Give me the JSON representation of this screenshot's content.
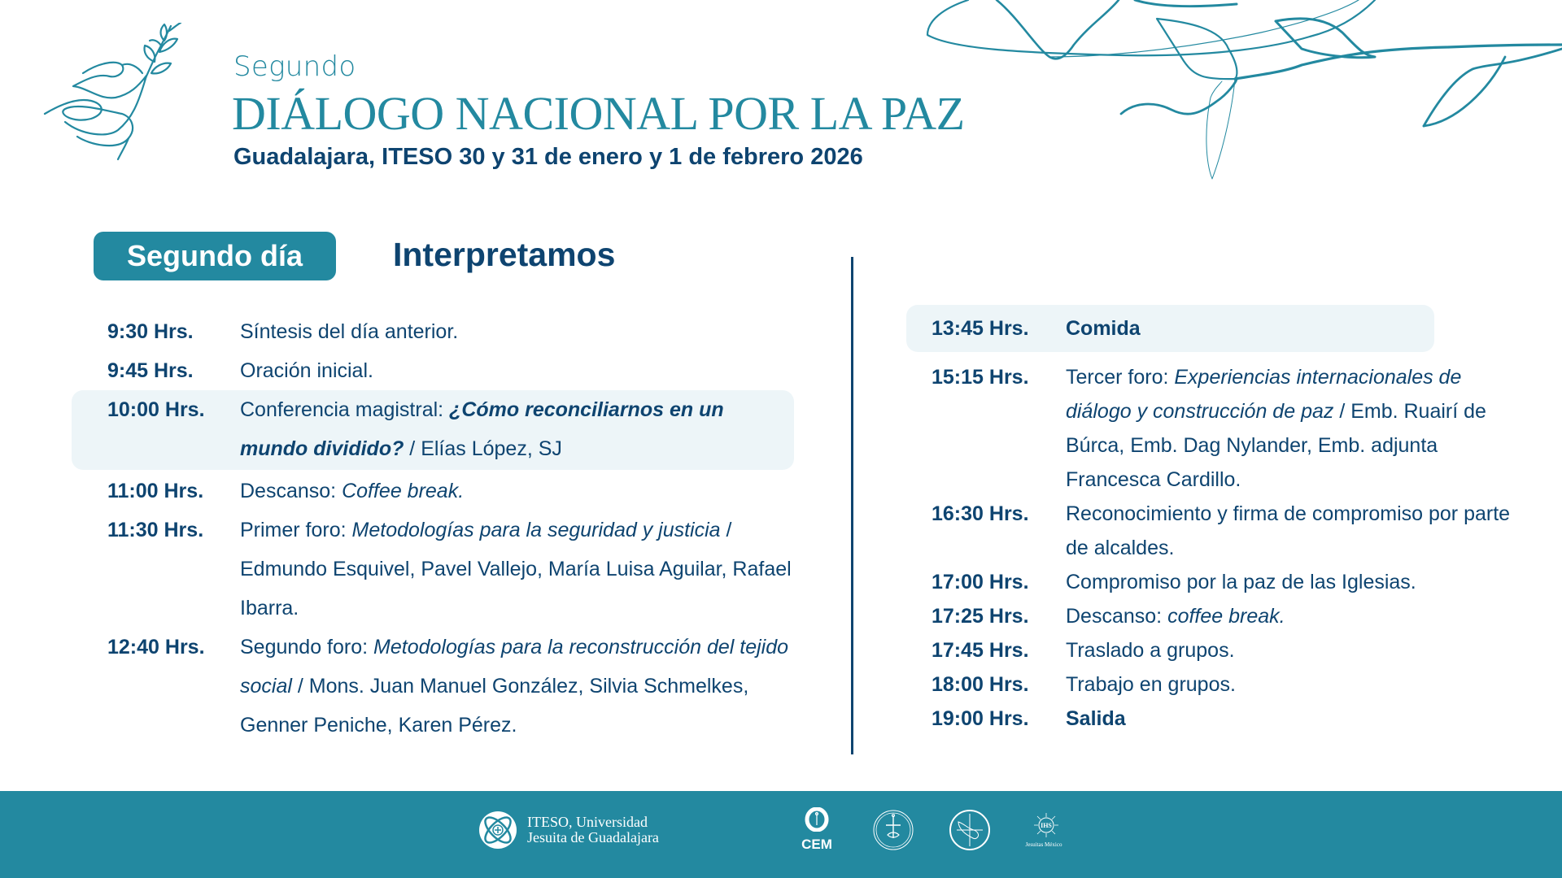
{
  "header": {
    "eyebrow": "Segundo",
    "title": "DIÁLOGO NACIONAL POR LA PAZ",
    "subtitle": "Guadalajara, ITESO 30 y 31 de enero y 1 de febrero 2026",
    "decor_icons": [
      "dove-with-olive-branch-icon",
      "olive-vine-icon"
    ]
  },
  "day": {
    "badge": "Segundo día",
    "theme": "Interpretamos"
  },
  "colors": {
    "accent_teal": "#2389A0",
    "text_navy": "#0E4470",
    "highlight_bg": "#EDF5F8",
    "background": "#FFFFFF"
  },
  "schedule_left": [
    {
      "time": "9:30 Hrs.",
      "desc": [
        {
          "t": "Síntesis del día anterior.",
          "s": "n"
        }
      ]
    },
    {
      "time": "9:45 Hrs.",
      "desc": [
        {
          "t": "Oración inicial.",
          "s": "n"
        }
      ]
    },
    {
      "time": "10:00 Hrs.",
      "highlight": true,
      "desc": [
        {
          "t": "Conferencia magistral: ",
          "s": "n"
        },
        {
          "t": "¿Cómo reconciliarnos en un mundo dividido?",
          "s": "bi"
        },
        {
          "t": " / Elías López, SJ",
          "s": "n"
        }
      ]
    },
    {
      "time": "11:00 Hrs.",
      "desc": [
        {
          "t": "Descanso: ",
          "s": "n"
        },
        {
          "t": "Coffee break.",
          "s": "i"
        }
      ]
    },
    {
      "time": "11:30 Hrs.",
      "desc": [
        {
          "t": "Primer foro: ",
          "s": "n"
        },
        {
          "t": "Metodologías para la seguridad y justicia",
          "s": "i"
        },
        {
          "t": " / Edmundo Esquivel, Pavel Vallejo, María Luisa Aguilar, Rafael Ibarra.",
          "s": "n"
        }
      ]
    },
    {
      "time": "12:40 Hrs.",
      "desc": [
        {
          "t": "Segundo foro: ",
          "s": "n"
        },
        {
          "t": "Metodologías para la reconstrucción del tejido social",
          "s": "i"
        },
        {
          "t": " / Mons. Juan Manuel González, Silvia Schmelkes, Genner Peniche,  Karen Pérez.",
          "s": "n"
        }
      ]
    }
  ],
  "schedule_right": [
    {
      "time": "13:45 Hrs.",
      "highlight": true,
      "desc": [
        {
          "t": "Comida",
          "s": "b"
        }
      ]
    },
    {
      "time": "15:15 Hrs.",
      "desc": [
        {
          "t": "Tercer foro: ",
          "s": "n"
        },
        {
          "t": "Experiencias internacionales de diálogo y construcción de paz",
          "s": "i"
        },
        {
          "t": " / Emb. Ruairí de Búrca, Emb. Dag Nylander, Emb. adjunta Francesca Cardillo.",
          "s": "n"
        }
      ]
    },
    {
      "time": "16:30 Hrs.",
      "desc": [
        {
          "t": "Reconocimiento y firma de compromiso por parte de alcaldes.",
          "s": "n"
        }
      ]
    },
    {
      "time": "17:00 Hrs.",
      "desc": [
        {
          "t": "Compromiso por la paz de las Iglesias.",
          "s": "n"
        }
      ]
    },
    {
      "time": "17:25 Hrs.",
      "desc": [
        {
          "t": "Descanso: ",
          "s": "n"
        },
        {
          "t": "coffee break.",
          "s": "i"
        }
      ]
    },
    {
      "time": "17:45 Hrs.",
      "desc": [
        {
          "t": "Traslado a grupos.",
          "s": "n"
        }
      ]
    },
    {
      "time": "18:00 Hrs.",
      "desc": [
        {
          "t": "Trabajo en grupos.",
          "s": "n"
        }
      ]
    },
    {
      "time": "19:00 Hrs.",
      "desc": [
        {
          "t": "Salida",
          "s": "b"
        }
      ]
    }
  ],
  "footer": {
    "iteso_line1": "ITESO, Universidad",
    "iteso_line2": "Jesuita de Guadalajara",
    "cem_label": "CEM",
    "jesuitas_label": "Jesuitas México",
    "logos": [
      "iteso-logo",
      "cem-logo",
      "ecumenical-seal-logo",
      "mexico-map-seal-logo",
      "jesuitas-mexico-logo"
    ]
  }
}
